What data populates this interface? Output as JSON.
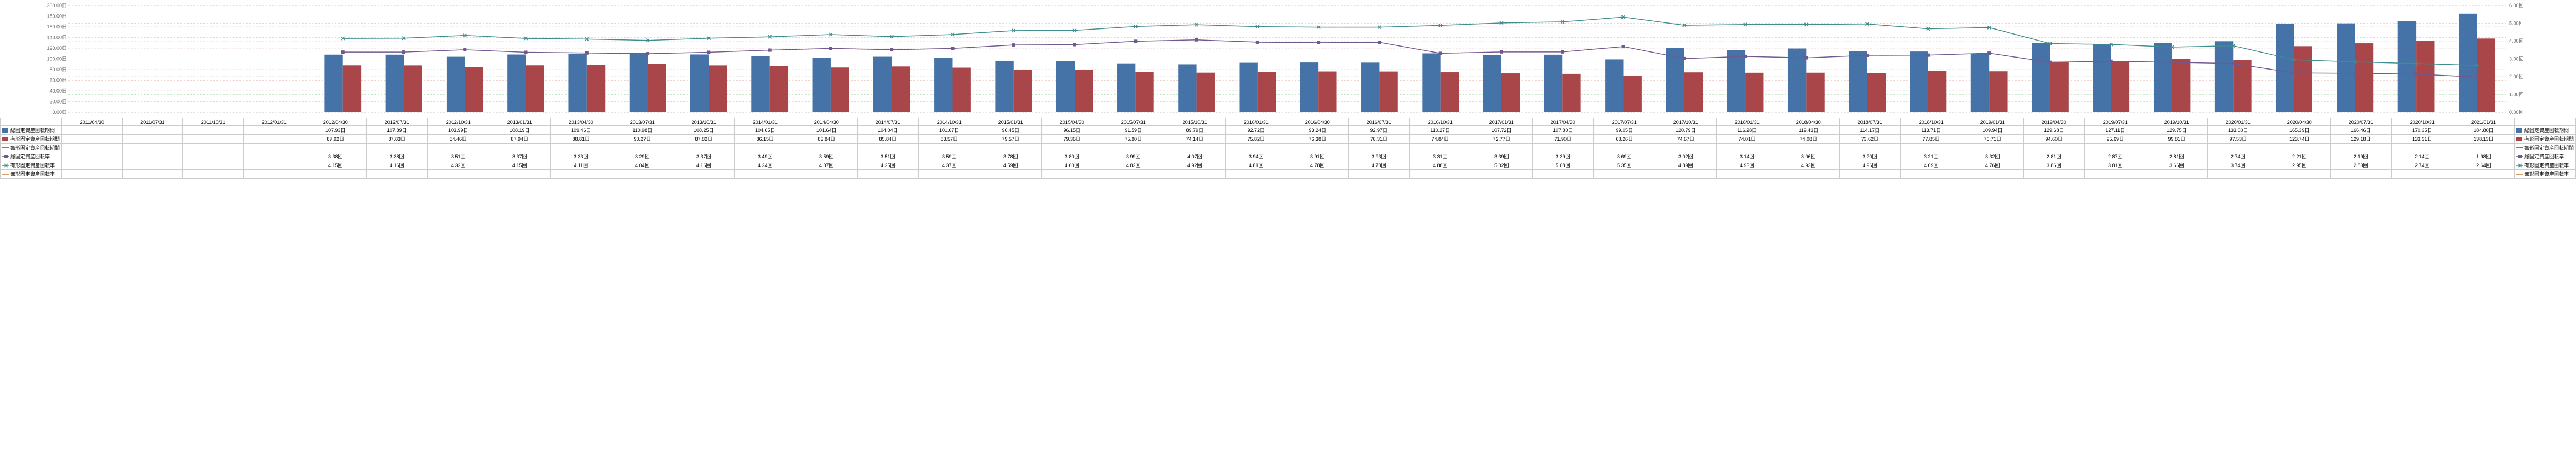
{
  "dates": [
    "2011/04/30",
    "2011/07/31",
    "2011/10/31",
    "2012/01/31",
    "2012/04/30",
    "2012/07/31",
    "2012/10/31",
    "2013/01/31",
    "2013/04/30",
    "2013/07/31",
    "2013/10/31",
    "2014/01/31",
    "2014/04/30",
    "2014/07/31",
    "2014/10/31",
    "2015/01/31",
    "2015/04/30",
    "2015/07/31",
    "2015/10/31",
    "2016/01/31",
    "2016/04/30",
    "2016/07/31",
    "2016/10/31",
    "2017/01/31",
    "2017/04/30",
    "2017/07/31",
    "2017/10/31",
    "2018/01/31",
    "2018/04/30",
    "2018/07/31",
    "2018/10/31",
    "2019/01/31",
    "2019/04/30",
    "2019/07/31",
    "2019/10/31",
    "2020/01/31",
    "2020/04/30",
    "2020/07/31",
    "2020/10/31",
    "2021/01/31"
  ],
  "blank_lead": 4,
  "series": [
    {
      "name": "総固定資産回転期間",
      "type": "bar",
      "color": "#4573a7",
      "axis": "left",
      "unit": "日",
      "values": [
        107.93,
        107.89,
        103.99,
        108.19,
        109.46,
        110.98,
        108.25,
        104.65,
        101.64,
        104.04,
        101.67,
        96.45,
        96.15,
        91.59,
        89.79,
        92.72,
        93.24,
        92.97,
        110.27,
        107.72,
        107.8,
        99.05,
        120.79,
        116.28,
        119.43,
        114.17,
        113.71,
        109.94,
        129.68,
        127.11,
        129.75,
        133.0,
        165.39,
        166.46,
        170.35,
        184.8
      ]
    },
    {
      "name": "有形固定資産回転期間",
      "type": "bar",
      "color": "#a9464a",
      "axis": "left",
      "unit": "日",
      "values": [
        87.92,
        87.83,
        84.46,
        87.94,
        88.81,
        90.27,
        87.82,
        86.15,
        83.84,
        85.84,
        83.57,
        79.57,
        79.36,
        75.8,
        74.14,
        75.82,
        76.38,
        76.31,
        74.84,
        72.77,
        71.9,
        68.26,
        74.67,
        74.01,
        74.08,
        73.62,
        77.85,
        76.71,
        94.6,
        95.69,
        99.81,
        97.53,
        123.74,
        129.18,
        133.31,
        138.13
      ]
    },
    {
      "name": "無形固定資産回転期間",
      "type": "hidden",
      "color": "#336633",
      "axis": "left",
      "unit": "日",
      "values": []
    },
    {
      "name": "総固定資産回転率",
      "type": "line",
      "color": "#71588f",
      "marker": "square",
      "axis": "right",
      "unit": "回",
      "values": [
        3.38,
        3.38,
        3.51,
        3.37,
        3.33,
        3.29,
        3.37,
        3.49,
        3.59,
        3.51,
        3.59,
        3.78,
        3.8,
        3.99,
        4.07,
        3.94,
        3.91,
        3.93,
        3.31,
        3.39,
        3.39,
        3.69,
        3.02,
        3.14,
        3.06,
        3.2,
        3.21,
        3.32,
        2.81,
        2.87,
        2.81,
        2.74,
        2.21,
        2.19,
        2.14,
        1.98
      ]
    },
    {
      "name": "有形固定資産回転率",
      "type": "line",
      "color": "#408d8e",
      "marker": "x",
      "axis": "right",
      "unit": "回",
      "values": [
        4.15,
        4.16,
        4.32,
        4.15,
        4.11,
        4.04,
        4.16,
        4.24,
        4.37,
        4.25,
        4.37,
        4.59,
        4.6,
        4.82,
        4.92,
        4.81,
        4.78,
        4.78,
        4.88,
        5.02,
        5.08,
        5.35,
        4.89,
        4.93,
        4.93,
        4.96,
        4.69,
        4.76,
        3.86,
        3.81,
        3.66,
        3.74,
        2.95,
        2.83,
        2.74,
        2.64
      ]
    },
    {
      "name": "無形固定資産回転率",
      "type": "hidden",
      "color": "#cc7b38",
      "axis": "right",
      "unit": "回",
      "values": []
    }
  ],
  "left_axis": {
    "min": 0,
    "max": 200,
    "step": 20,
    "unit": "日",
    "grid_color": "#d8a8a8"
  },
  "right_axis": {
    "min": 0,
    "max": 6,
    "step": 1,
    "unit": "回",
    "grid_color": "#99cc99"
  },
  "chart": {
    "bg": "#ffffff",
    "bar_group_width": 0.6,
    "font_size": 9
  }
}
